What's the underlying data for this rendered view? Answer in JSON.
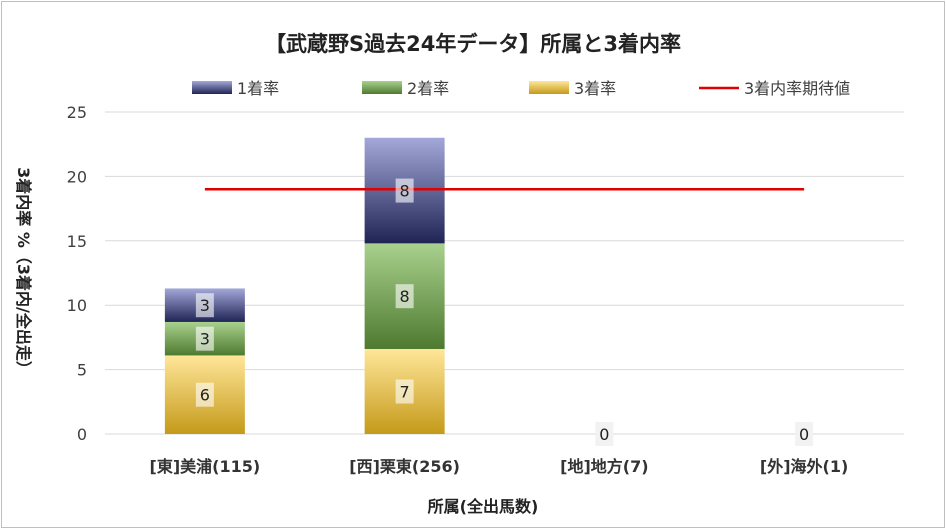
{
  "colors": {
    "first": [
      "#a3a8d8",
      "#1f2454"
    ],
    "second": [
      "#a9d18e",
      "#4e7a2f"
    ],
    "third": [
      "#ffe699",
      "#c59a1a"
    ],
    "expected_line": "#e00000",
    "gridline": "#d9d9d9"
  },
  "chart_data": {
    "type": "bar",
    "stacked": true,
    "title": "【武蔵野S過去24年データ】所属と3着内率",
    "xlabel": "所属(全出馬数)",
    "ylabel": "3着内率 %（3着内/全出走）",
    "ylim": [
      0,
      25
    ],
    "yticks": [
      0,
      5,
      10,
      15,
      20,
      25
    ],
    "grid": true,
    "legend_position": "top",
    "categories": [
      "[東]美浦(115)",
      "[西]栗東(256)",
      "[地]地方(7)",
      "[外]海外(1)"
    ],
    "series": [
      {
        "name": "3着率",
        "values": [
          6.1,
          6.6,
          0,
          0
        ],
        "labels": [
          "6",
          "7",
          "0",
          "0"
        ],
        "color_key": "third"
      },
      {
        "name": "2着率",
        "values": [
          2.6,
          8.2,
          0,
          0
        ],
        "labels": [
          "3",
          "8",
          "",
          ""
        ],
        "color_key": "second"
      },
      {
        "name": "1着率",
        "values": [
          2.6,
          8.2,
          0,
          0
        ],
        "labels": [
          "3",
          "8",
          "",
          ""
        ],
        "color_key": "first"
      }
    ],
    "reference_line": {
      "name": "3着内率期待値",
      "value": 19
    },
    "legend_order": [
      "1着率",
      "2着率",
      "3着率",
      "3着内率期待値"
    ]
  }
}
